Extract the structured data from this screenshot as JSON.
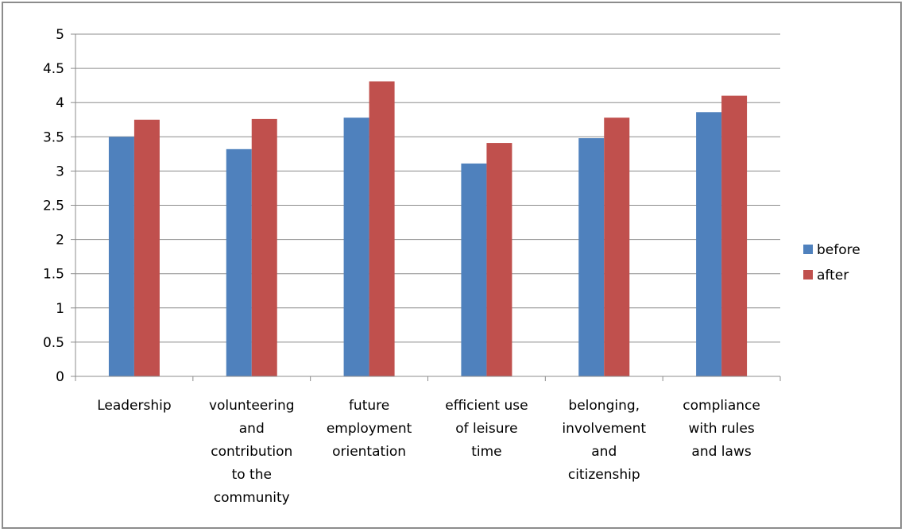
{
  "chart_data": {
    "type": "bar",
    "title": "",
    "xlabel": "",
    "ylabel": "",
    "ylim": [
      0,
      5
    ],
    "yticks": [
      "0",
      "0.5",
      "1",
      "1.5",
      "2",
      "2.5",
      "3",
      "3.5",
      "4",
      "4.5",
      "5"
    ],
    "grid": true,
    "legend_position": "right",
    "categories": [
      [
        "Leadership"
      ],
      [
        "volunteering",
        "and",
        "contribution",
        "to the",
        "community"
      ],
      [
        "future",
        "employment",
        "orientation"
      ],
      [
        "efficient use",
        "of leisure",
        "time"
      ],
      [
        "belonging,",
        "involvement",
        "and",
        "citizenship"
      ],
      [
        "compliance",
        "with rules",
        "and laws"
      ]
    ],
    "series": [
      {
        "name": "before",
        "color": "#4f81bd",
        "values": [
          3.5,
          3.32,
          3.78,
          3.11,
          3.48,
          3.86
        ]
      },
      {
        "name": "after",
        "color": "#c0504d",
        "values": [
          3.75,
          3.76,
          4.31,
          3.41,
          3.78,
          4.1
        ]
      }
    ]
  }
}
